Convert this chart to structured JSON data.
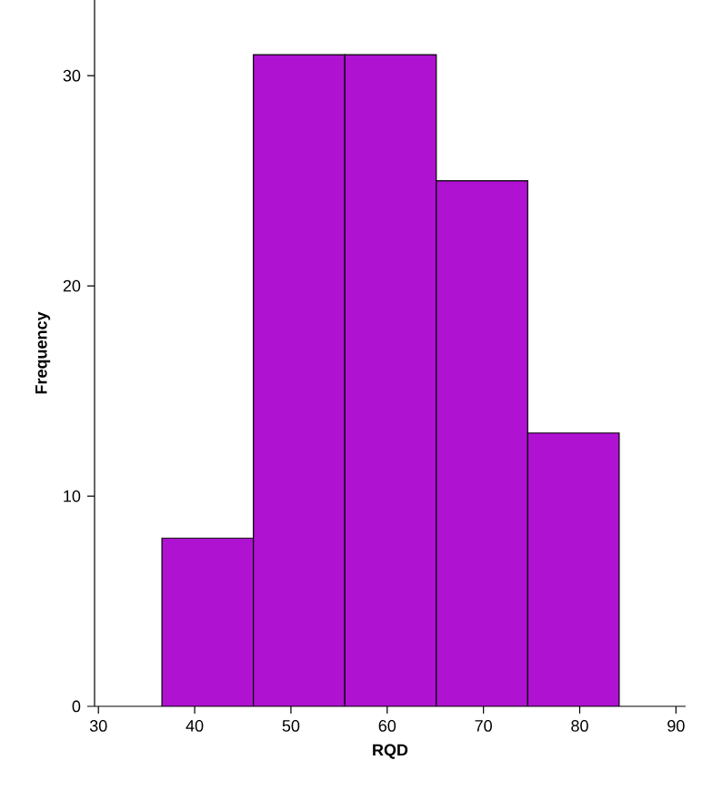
{
  "chart_data": {
    "type": "histogram",
    "xlabel": "RQD",
    "ylabel": "Frequency",
    "bins": [
      36.6,
      46.1,
      55.6,
      65.1,
      74.6,
      84.1
    ],
    "values": [
      8,
      31,
      31,
      25,
      13
    ],
    "color": "#b012d2",
    "xlim": [
      29.6,
      91
    ],
    "xticks": [
      30,
      40,
      50,
      60,
      70,
      80,
      90
    ],
    "ylim": [
      0,
      33.6
    ],
    "yticks": [
      0,
      10,
      20,
      30
    ],
    "grid": false
  }
}
